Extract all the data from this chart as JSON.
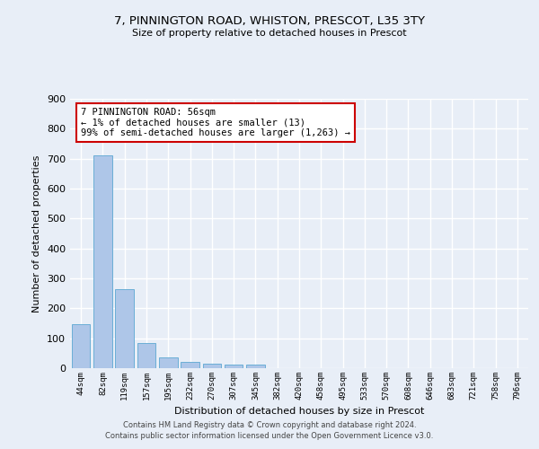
{
  "title_line1": "7, PINNINGTON ROAD, WHISTON, PRESCOT, L35 3TY",
  "title_line2": "Size of property relative to detached houses in Prescot",
  "xlabel": "Distribution of detached houses by size in Prescot",
  "ylabel": "Number of detached properties",
  "categories": [
    "44sqm",
    "82sqm",
    "119sqm",
    "157sqm",
    "195sqm",
    "232sqm",
    "270sqm",
    "307sqm",
    "345sqm",
    "382sqm",
    "420sqm",
    "458sqm",
    "495sqm",
    "533sqm",
    "570sqm",
    "608sqm",
    "646sqm",
    "683sqm",
    "721sqm",
    "758sqm",
    "796sqm"
  ],
  "values": [
    147,
    710,
    263,
    85,
    36,
    22,
    14,
    12,
    11,
    0,
    0,
    0,
    0,
    0,
    0,
    0,
    0,
    0,
    0,
    0,
    0
  ],
  "bar_color": "#aec6e8",
  "bar_edge_color": "#6baed6",
  "background_color": "#e8eef7",
  "grid_color": "#ffffff",
  "ylim": [
    0,
    900
  ],
  "yticks": [
    0,
    100,
    200,
    300,
    400,
    500,
    600,
    700,
    800,
    900
  ],
  "annotation_line1": "7 PINNINGTON ROAD: 56sqm",
  "annotation_line2": "← 1% of detached houses are smaller (13)",
  "annotation_line3": "99% of semi-detached houses are larger (1,263) →",
  "annotation_box_color": "#cc0000",
  "footer_line1": "Contains HM Land Registry data © Crown copyright and database right 2024.",
  "footer_line2": "Contains public sector information licensed under the Open Government Licence v3.0."
}
